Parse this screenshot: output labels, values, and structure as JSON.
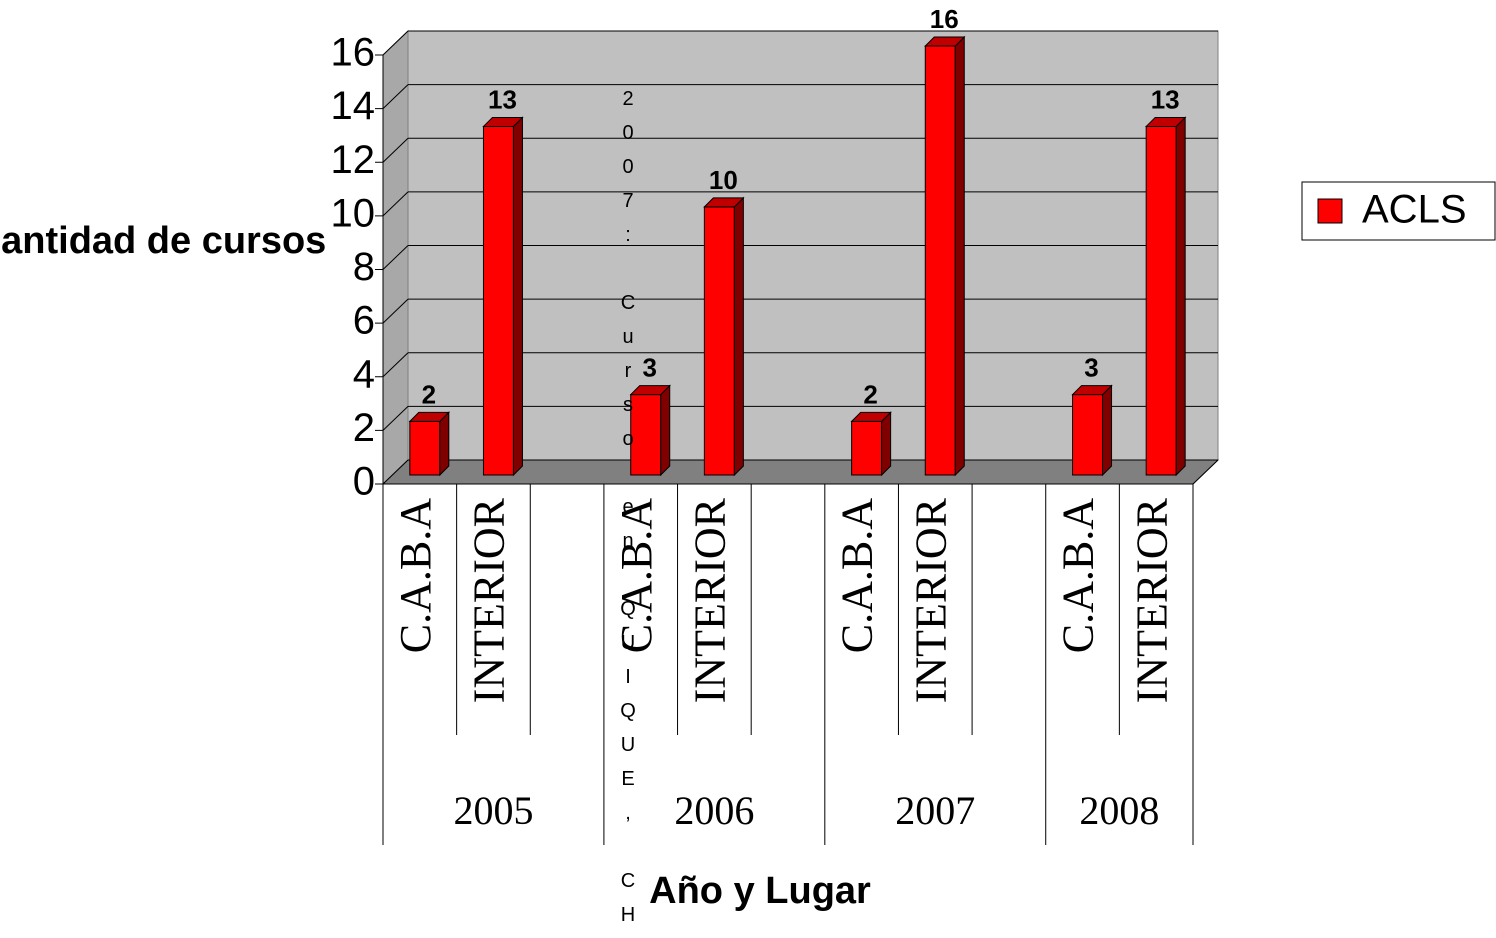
{
  "chart_data": {
    "type": "bar",
    "y_label": "Cantidad de cursos",
    "x_label": "Año y Lugar",
    "annotation": "2007: Curso en QUIQUE, CH",
    "categories": [
      "C.A.B.A",
      "INTERIOR",
      null,
      "C.A.B.A",
      "INTERIOR",
      null,
      "C.A.B.A",
      "INTERIOR",
      null,
      "C.A.B.A",
      "INTERIOR"
    ],
    "groups": [
      "2005",
      "2006",
      "2007",
      "2008"
    ],
    "series": [
      {
        "name": "ACLS",
        "color": "#ff0000",
        "values": [
          2,
          13,
          null,
          3,
          10,
          null,
          2,
          16,
          null,
          3,
          13
        ]
      }
    ],
    "ylim": [
      0,
      16
    ],
    "yticks": [
      0,
      2,
      4,
      6,
      8,
      10,
      12,
      14,
      16
    ],
    "grid": true,
    "legend": "right"
  }
}
